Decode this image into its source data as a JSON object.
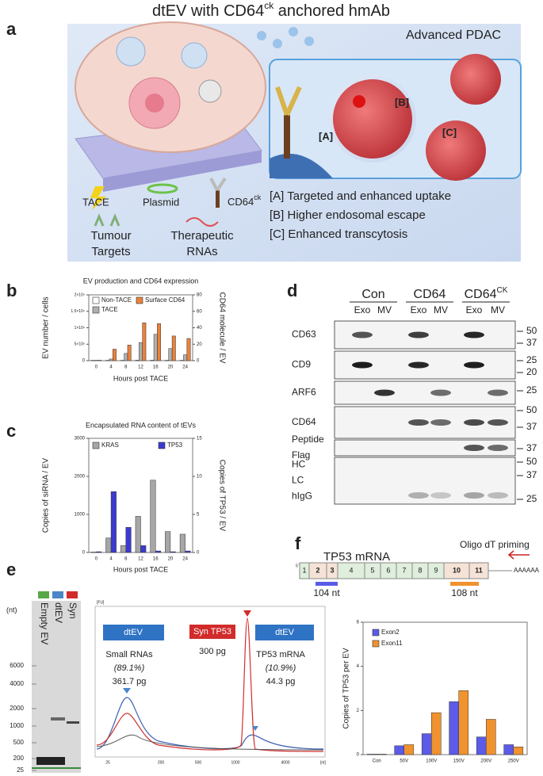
{
  "title": {
    "prefix": "dtEV with CD64",
    "sup": "ck",
    "suffix": " anchored hmAb"
  },
  "panel_labels": [
    "a",
    "b",
    "c",
    "d",
    "e",
    "f"
  ],
  "panel_a": {
    "location": "Advanced PDAC",
    "markers": [
      "[A]",
      "[B]",
      "[C]"
    ],
    "legend": [
      "TACE",
      "Plasmid"
    ],
    "cd64": {
      "text": "CD64",
      "sup": "ck"
    },
    "legend2": [
      [
        "Tumour",
        "Targets"
      ],
      [
        "Therapeutic",
        "RNAs"
      ]
    ],
    "effects": [
      "[A] Targeted and enhanced uptake",
      "[B] Higher endosomal escape",
      "[C] Enhanced transcytosis"
    ]
  },
  "chart_data": [
    {
      "type": "bar",
      "title": "EV production and CD64 expression",
      "x_label": "Hours post TACE",
      "y_label": "EV number / cells",
      "y2_label": "CD64 molecule / EV",
      "categories": [
        "0",
        "4",
        "8",
        "12",
        "16",
        "20",
        "24"
      ],
      "series": [
        {
          "name": "Non-TACE",
          "color": "#ffffff",
          "values": [
            10000000,
            10000000,
            10000000,
            15000000,
            15000000,
            10000000,
            10000000
          ]
        },
        {
          "name": "TACE",
          "color": "#b0b0b0",
          "values": [
            10000000,
            50000000,
            220000000,
            550000000,
            800000000,
            370000000,
            180000000
          ]
        },
        {
          "name": "Surface CD64",
          "color": "#e8823a",
          "axis": "y2",
          "values": [
            0.5,
            14,
            19,
            46,
            45,
            30,
            27
          ]
        }
      ],
      "ylim": [
        0,
        2000000000
      ],
      "yticks": [
        0,
        {
          "value": 500000000,
          "label": "5×10⁸"
        },
        {
          "value": 1000000000,
          "label": "1×10⁹"
        },
        {
          "value": 1500000000,
          "label": "1.5×10⁹"
        },
        {
          "value": 2000000000,
          "label": "2×10⁹"
        }
      ],
      "y2lim": [
        0,
        80
      ],
      "y2ticks": [
        0,
        20,
        40,
        60,
        80
      ]
    },
    {
      "type": "bar",
      "title": "Encapsulated RNA content of tEVs",
      "x_label": "Hours post TACE",
      "y_label": "Copies of siRNA / EV",
      "y2_label": "Copies of TP53 / EV",
      "categories": [
        "0",
        "4",
        "8",
        "12",
        "16",
        "20",
        "24"
      ],
      "series": [
        {
          "name": "KRAS",
          "color": "#a6a6a6",
          "values": [
            10,
            380,
            180,
            950,
            1900,
            550,
            480
          ]
        },
        {
          "name": "TP53",
          "color": "#3b3bd0",
          "axis": "y2",
          "values": [
            0.1,
            8,
            3.3,
            0.9,
            0.2,
            0.1,
            0.2
          ]
        }
      ],
      "ylim": [
        0,
        3000
      ],
      "yticks": [
        0,
        1000,
        2000,
        3000
      ],
      "y2lim": [
        0,
        15
      ],
      "y2ticks": [
        0,
        5,
        10,
        15
      ]
    },
    {
      "type": "bar",
      "y_label": "Copies of TP53 per EV",
      "categories": [
        "Con",
        "50V",
        "100V",
        "150V",
        "200V",
        "250V"
      ],
      "series": [
        {
          "name": "Exon2",
          "color": "#5b5be8",
          "values": [
            0.02,
            0.4,
            0.95,
            2.4,
            0.8,
            0.45
          ]
        },
        {
          "name": "Exon11",
          "color": "#f0922e",
          "values": [
            0.02,
            0.45,
            1.9,
            2.9,
            1.6,
            0.35
          ]
        }
      ],
      "ylim": [
        0,
        6
      ],
      "yticks": [
        0,
        2,
        4,
        6
      ]
    }
  ],
  "panel_d": {
    "groups": [
      {
        "name": "Con"
      },
      {
        "name": "CD64"
      },
      {
        "name": "CD64",
        "sup": "CK"
      }
    ],
    "lanes": [
      "Exo",
      "MV",
      "Exo",
      "MV",
      "Exo",
      "MV"
    ],
    "rows": [
      {
        "labels": [
          "CD63"
        ],
        "markers": [
          50,
          37
        ]
      },
      {
        "labels": [
          "CD9"
        ],
        "markers": [
          25,
          20
        ]
      },
      {
        "labels": [
          "ARF6"
        ],
        "markers": [
          25
        ]
      },
      {
        "labels": [
          "CD64"
        ],
        "markers": [
          50,
          37
        ]
      },
      {
        "labels": [
          "Peptide",
          "Flag"
        ],
        "markers": [
          37
        ]
      },
      {
        "labels": [
          "HC",
          "LC",
          "hIgG"
        ],
        "markers": [
          50,
          37,
          25
        ]
      }
    ]
  },
  "panel_e": {
    "lane_labels": [
      "Empty EV",
      "dtEV",
      "Syn"
    ],
    "unit": "(nt)",
    "ladder": [
      6000,
      4000,
      2000,
      1000,
      500,
      200,
      25
    ],
    "y_label": "[FU]",
    "x_label": "[nt]",
    "x_ticks": [
      25,
      200,
      500,
      1000,
      4000
    ],
    "boxes": [
      {
        "header": "dtEV",
        "lines": [
          "Small RNAs",
          "(89.1%)",
          "361.7 pg"
        ]
      },
      {
        "header": "Syn TP53",
        "lines": [
          "300 pg"
        ]
      },
      {
        "header": "dtEV",
        "lines": [
          "TP53 mRNA",
          "(10.9%)",
          "44.3 pg"
        ]
      }
    ]
  },
  "panel_f": {
    "title": "TP53 mRNA",
    "primer": "Oligo dT priming",
    "five_prime": "5'",
    "exons": [
      "1",
      "2",
      "3",
      "4",
      "5",
      "6",
      "7",
      "8",
      "9",
      "10",
      "11"
    ],
    "polyA": "AAAAAA",
    "amplicons": [
      "104 nt",
      "108 nt"
    ]
  }
}
